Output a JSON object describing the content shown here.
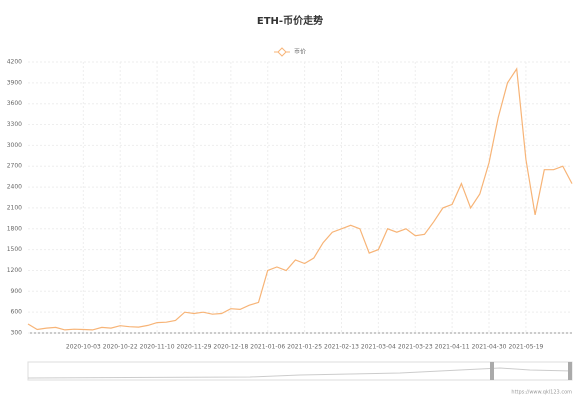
{
  "chart_data": {
    "type": "line",
    "title": "ETH-币价走势",
    "categories": [
      null,
      null,
      null,
      null,
      null,
      null,
      "2020-10-03",
      null,
      null,
      null,
      "2020-10-22",
      null,
      null,
      null,
      "2020-11-10",
      null,
      null,
      null,
      "2020-11-29",
      null,
      null,
      null,
      "2020-12-18",
      null,
      null,
      null,
      "2021-01-06",
      null,
      null,
      null,
      "2021-01-25",
      null,
      null,
      null,
      "2021-02-13",
      null,
      null,
      null,
      "2021-03-04",
      null,
      null,
      null,
      "2021-03-23",
      null,
      null,
      null,
      "2021-04-11",
      null,
      null,
      null,
      "2021-04-30",
      null,
      null,
      null,
      "2021-05-19",
      null,
      null,
      null,
      null,
      null
    ],
    "series": [
      {
        "name": "币价",
        "color": "#f7b477",
        "values": [
          430,
          350,
          370,
          380,
          345,
          355,
          350,
          345,
          380,
          370,
          405,
          390,
          385,
          410,
          450,
          455,
          480,
          600,
          580,
          600,
          570,
          580,
          650,
          640,
          700,
          740,
          1200,
          1250,
          1200,
          1350,
          1300,
          1380,
          1600,
          1750,
          1800,
          1850,
          1800,
          1450,
          1500,
          1800,
          1750,
          1800,
          1700,
          1720,
          1900,
          2100,
          2150,
          2450,
          2100,
          2300,
          2750,
          3400,
          3900,
          4100,
          2800,
          2000,
          2650,
          2650,
          2700,
          2450
        ]
      }
    ],
    "ylim": [
      300,
      4200
    ],
    "yticks": [
      300,
      600,
      900,
      1200,
      1500,
      1800,
      2100,
      2400,
      2700,
      3000,
      3300,
      3600,
      3900,
      4200
    ],
    "grid": true,
    "legend": "top",
    "source": "https://www.qkl123.com"
  }
}
